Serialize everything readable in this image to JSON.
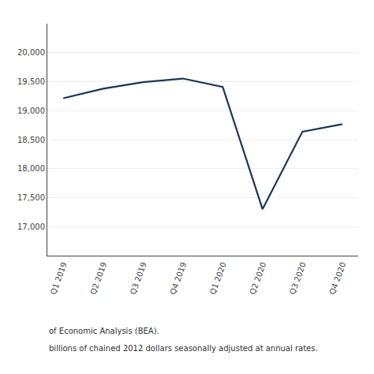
{
  "chart_data": {
    "type": "line",
    "categories": [
      "Q1 2019",
      "Q2 2019",
      "Q3 2019",
      "Q4 2019",
      "Q1 2020",
      "Q2 2020",
      "Q3 2020",
      "Q4 2020"
    ],
    "values": [
      19215.0,
      19379.0,
      19491.0,
      19554.0,
      19408.0,
      17302.0,
      18638.0,
      18767.0
    ],
    "color": "#1c3557",
    "ylim": [
      16500,
      20500
    ],
    "yticks": [
      {
        "value": 17000,
        "label": "17,000"
      },
      {
        "value": 17500,
        "label": "17,500"
      },
      {
        "value": 18000,
        "label": "18,000"
      },
      {
        "value": 18500,
        "label": "18,500"
      },
      {
        "value": 19000,
        "label": "19,000"
      },
      {
        "value": 19500,
        "label": "19,500"
      },
      {
        "value": 20000,
        "label": "20,000"
      }
    ],
    "grid": true,
    "annotations": [
      "of Economic Analysis (BEA).",
      "billions of chained 2012 dollars seasonally adjusted at annual rates."
    ]
  }
}
